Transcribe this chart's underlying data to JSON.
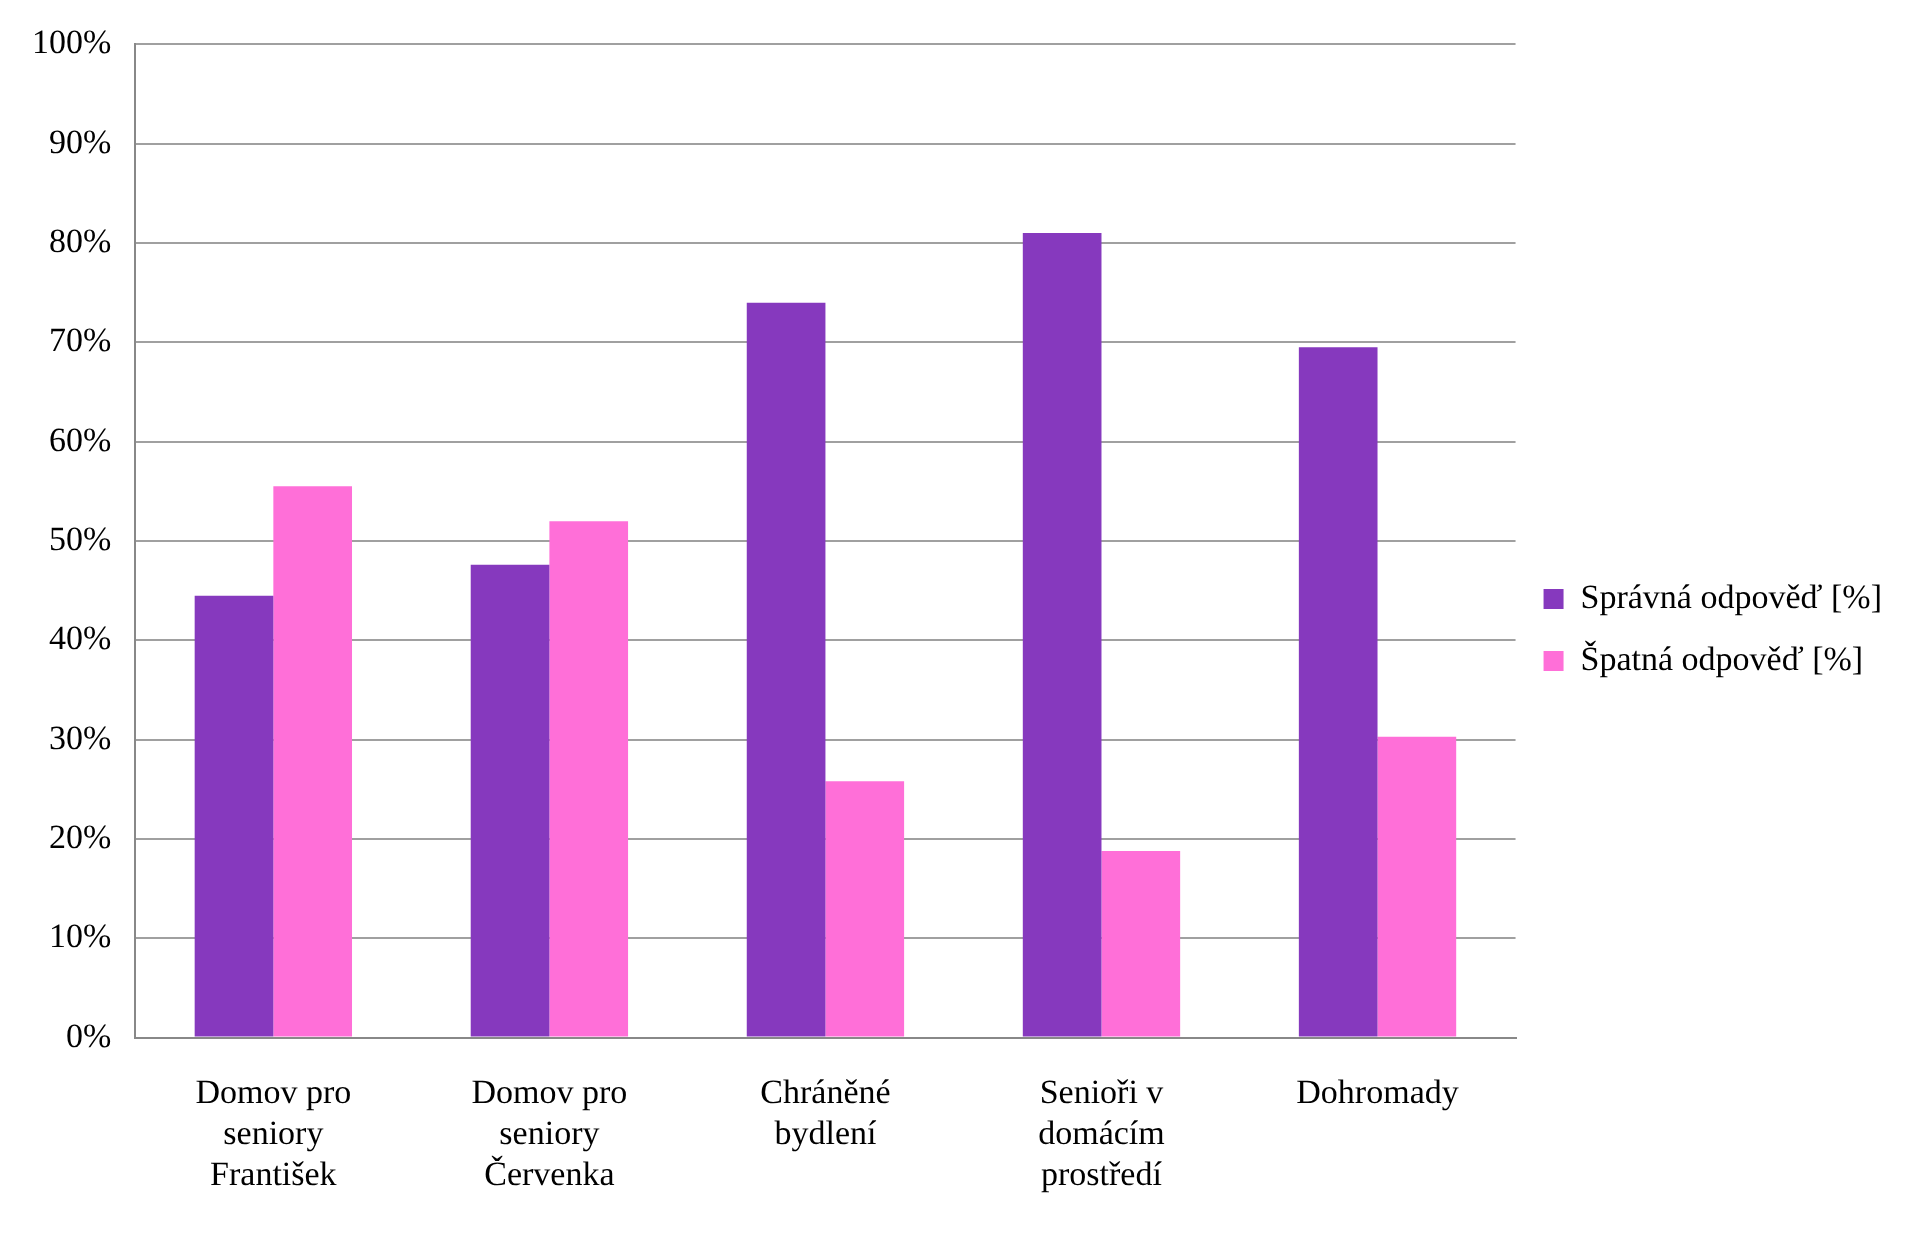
{
  "chart_data": {
    "type": "bar",
    "categories": [
      "Domov pro seniory František",
      "Domov pro seniory Červenka",
      "Chráněné bydlení",
      "Senioři v domácím prostředí",
      "Dohromady"
    ],
    "series": [
      {
        "name": "Správná odpověď [%]",
        "color": "#8639be",
        "values": [
          44.5,
          47.6,
          74,
          81,
          69.5
        ]
      },
      {
        "name": "Špatná odpověď [%]",
        "color": "#ff6fd8",
        "values": [
          55.5,
          52,
          25.8,
          18.8,
          30.3
        ]
      }
    ],
    "ylim": [
      0,
      100
    ],
    "yticks": [
      {
        "value": 0,
        "label": "0%"
      },
      {
        "value": 10,
        "label": "10%"
      },
      {
        "value": 20,
        "label": "20%"
      },
      {
        "value": 30,
        "label": "30%"
      },
      {
        "value": 40,
        "label": "40%"
      },
      {
        "value": 50,
        "label": "50%"
      },
      {
        "value": 60,
        "label": "60%"
      },
      {
        "value": 70,
        "label": "70%"
      },
      {
        "value": 80,
        "label": "80%"
      },
      {
        "value": 90,
        "label": "90%"
      },
      {
        "value": 100,
        "label": "100%"
      }
    ],
    "grid": "y",
    "legend": "right"
  }
}
